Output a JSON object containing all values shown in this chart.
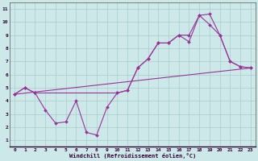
{
  "xlabel": "Windchill (Refroidissement éolien,°C)",
  "bg_color": "#cce8e8",
  "line_color": "#993399",
  "grid_color": "#aacccc",
  "xlim": [
    -0.5,
    23.5
  ],
  "ylim": [
    0.5,
    11.5
  ],
  "xticks": [
    0,
    1,
    2,
    3,
    4,
    5,
    6,
    7,
    8,
    9,
    10,
    11,
    12,
    13,
    14,
    15,
    16,
    17,
    18,
    19,
    20,
    21,
    22,
    23
  ],
  "yticks": [
    1,
    2,
    3,
    4,
    5,
    6,
    7,
    8,
    9,
    10,
    11
  ],
  "series": [
    {
      "x": [
        0,
        1,
        2,
        3,
        4,
        5,
        6,
        7,
        8,
        9,
        10,
        11,
        12,
        13,
        14,
        15,
        16,
        17,
        18,
        19,
        20,
        21,
        22,
        23
      ],
      "y": [
        4.5,
        5.0,
        4.6,
        3.3,
        2.3,
        2.4,
        4.0,
        1.6,
        1.4,
        3.5,
        4.6,
        4.8,
        6.5,
        7.2,
        8.4,
        8.4,
        9.0,
        8.5,
        10.5,
        9.8,
        9.0,
        7.0,
        6.6,
        6.5
      ]
    },
    {
      "x": [
        0,
        1,
        2,
        10,
        11,
        12,
        13,
        14,
        15,
        16,
        17,
        18,
        19,
        20,
        21,
        22,
        23
      ],
      "y": [
        4.5,
        5.0,
        4.6,
        4.6,
        4.8,
        6.5,
        7.2,
        8.4,
        8.4,
        9.0,
        9.0,
        10.5,
        10.6,
        9.0,
        7.0,
        6.6,
        6.5
      ]
    },
    {
      "x": [
        0,
        23
      ],
      "y": [
        4.5,
        6.5
      ]
    }
  ]
}
